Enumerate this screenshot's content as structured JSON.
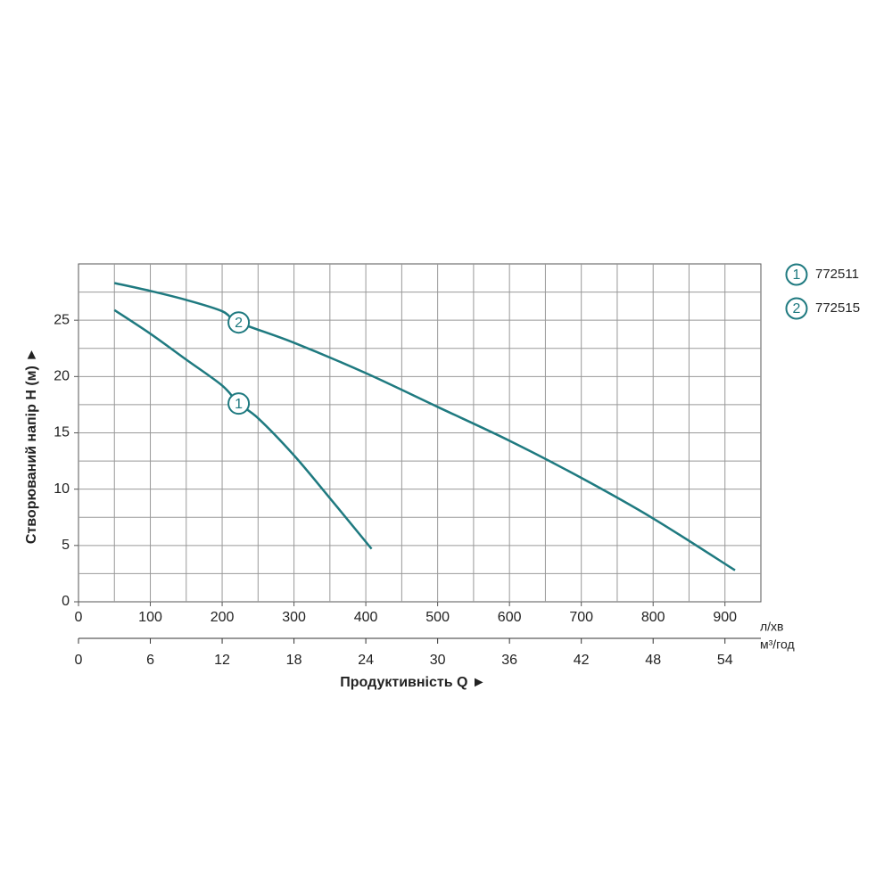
{
  "chart_data": {
    "type": "line",
    "xlabel": "Продуктивність  Q ►",
    "ylabel": "Створюваний напір H (м) ►",
    "xunit": "л/хв",
    "x2unit": "м³/год",
    "xlim": [
      0,
      950
    ],
    "xticks": [
      0,
      100,
      200,
      300,
      400,
      500,
      600,
      700,
      800,
      900
    ],
    "x2lim": [
      0,
      57
    ],
    "x2ticks": [
      0,
      6,
      12,
      18,
      24,
      30,
      36,
      42,
      48,
      54
    ],
    "ylim": [
      0,
      30
    ],
    "yticks": [
      0,
      5,
      10,
      15,
      20,
      25
    ],
    "xgrid": [
      50,
      100,
      150,
      200,
      250,
      300,
      350,
      400,
      450,
      500,
      550,
      600,
      650,
      700,
      750,
      800,
      850,
      900
    ],
    "ygrid": [
      2.5,
      5,
      7.5,
      10,
      12.5,
      15,
      17.5,
      20,
      22.5,
      25,
      27.5
    ],
    "grid": true,
    "legend": "right",
    "series": [
      {
        "name": "772511",
        "label": "1",
        "color": "#1f7a80",
        "x": [
          50,
          100,
          150,
          200,
          223,
          250,
          300,
          350,
          408
        ],
        "values": [
          25.9,
          23.8,
          21.5,
          19.2,
          17.6,
          16.3,
          13.0,
          9.2,
          4.7
        ]
      },
      {
        "name": "772515",
        "label": "2",
        "color": "#1f7a80",
        "x": [
          50,
          100,
          150,
          200,
          223,
          300,
          400,
          500,
          600,
          700,
          800,
          914
        ],
        "values": [
          28.3,
          27.6,
          26.8,
          25.8,
          24.8,
          23.0,
          20.3,
          17.3,
          14.3,
          11.0,
          7.4,
          2.8
        ]
      }
    ]
  }
}
